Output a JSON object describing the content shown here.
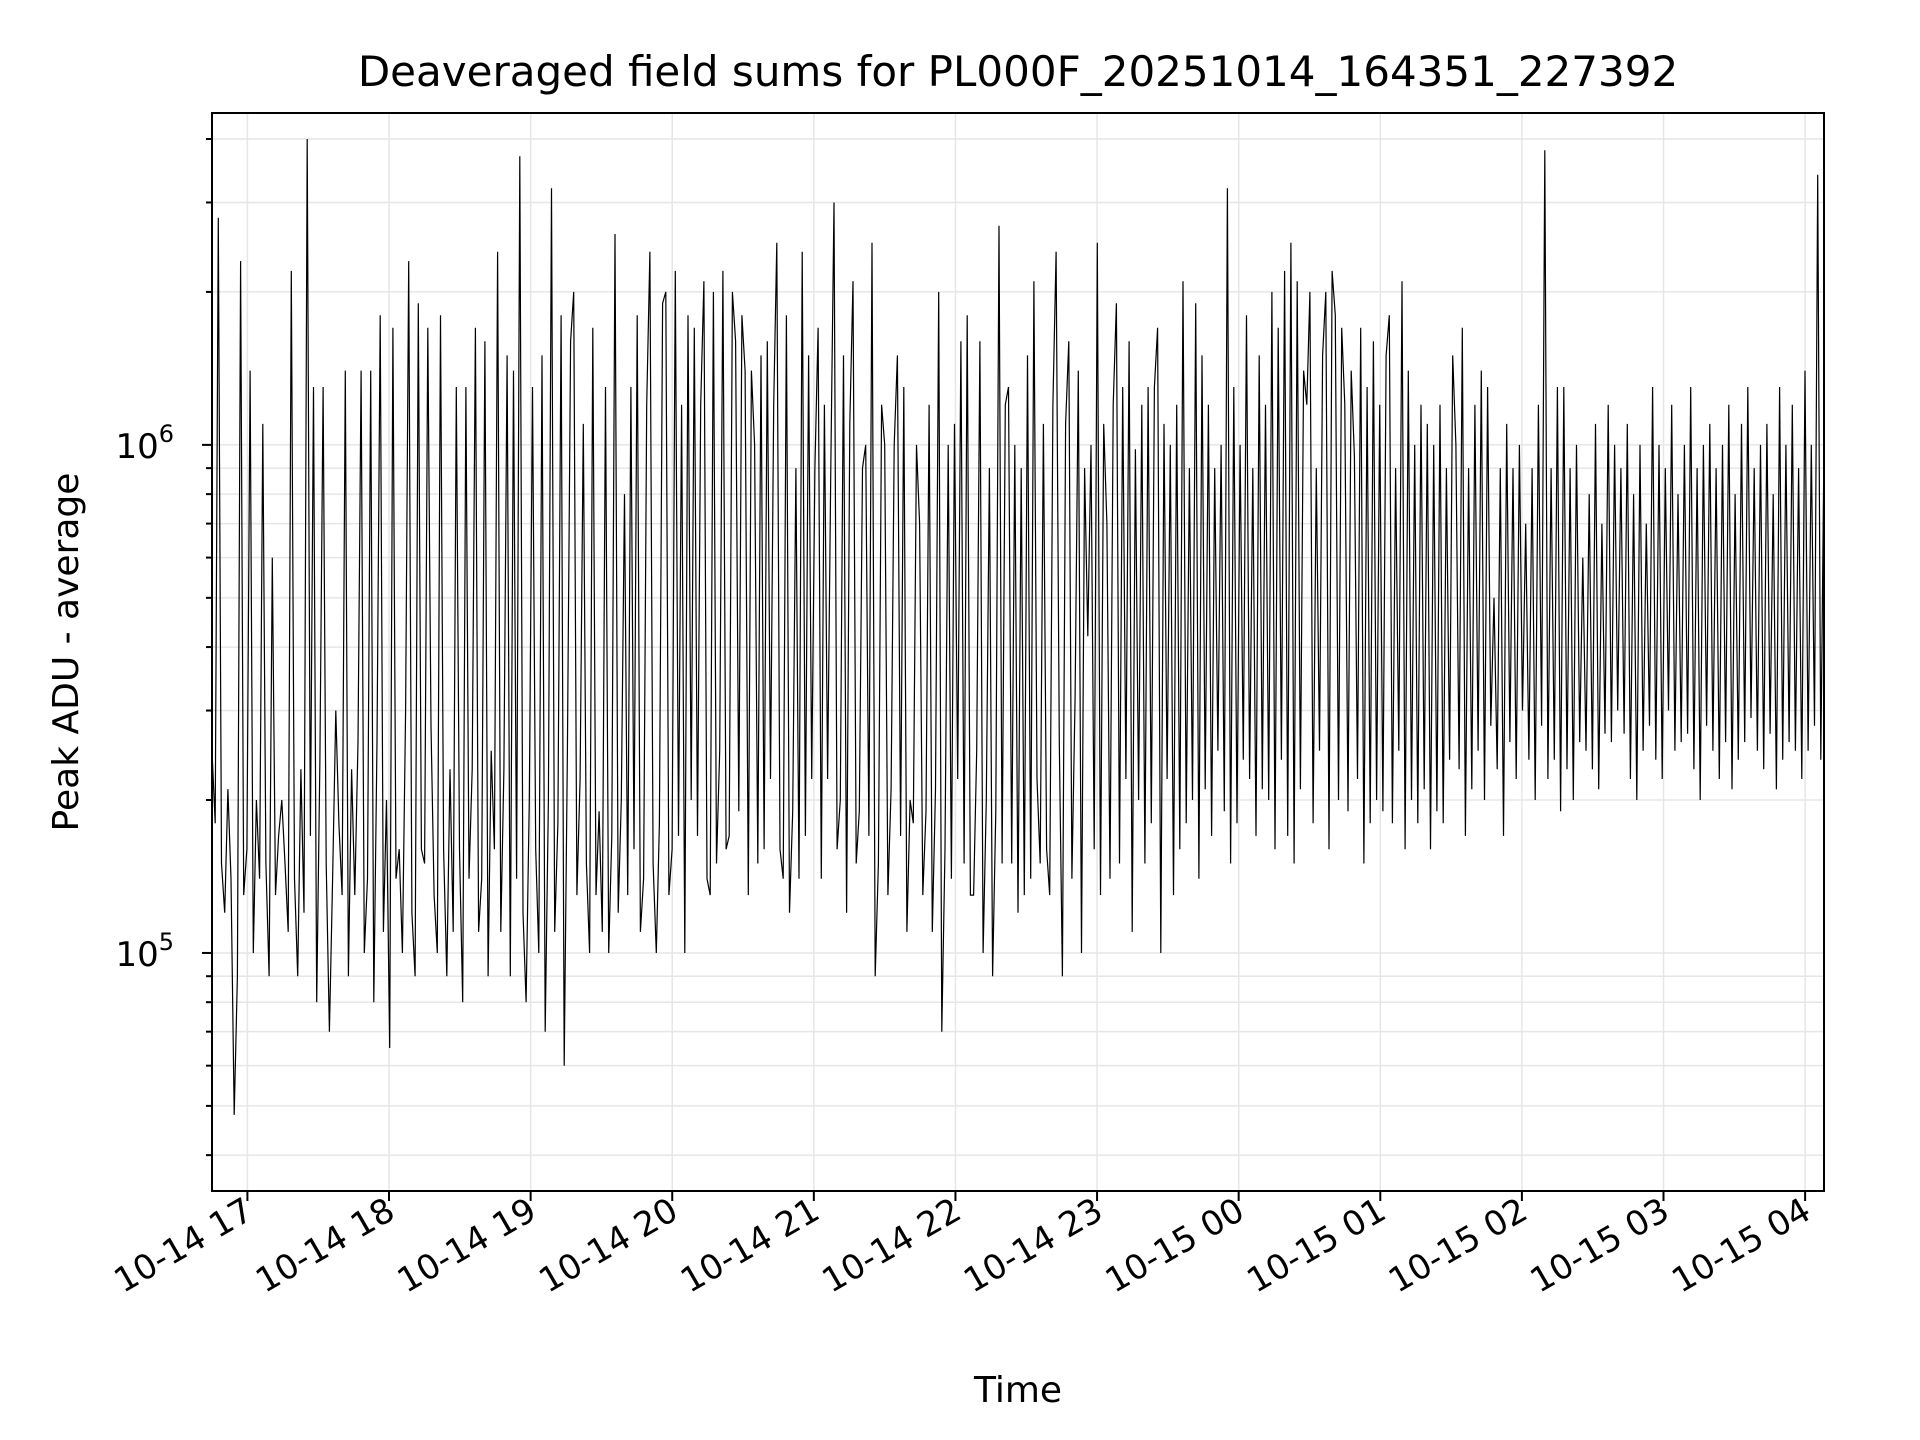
{
  "chart_data": {
    "type": "line",
    "title": "Deaveraged field sums for PL000F_20251014_164351_227392",
    "xlabel": "Time",
    "ylabel": "Peak ADU - average",
    "yscale": "log",
    "grid": true,
    "x_tick_labels": [
      "10-14 17",
      "10-14 18",
      "10-14 19",
      "10-14 20",
      "10-14 21",
      "10-14 22",
      "10-14 23",
      "10-15 00",
      "10-15 01",
      "10-15 02",
      "10-15 03",
      "10-15 04"
    ],
    "y_tick_labels": [
      {
        "base": "10",
        "exp": "5",
        "value": 100000
      },
      {
        "base": "10",
        "exp": "6",
        "value": 1000000
      }
    ],
    "xlim": [
      "2025-10-14 16:45",
      "2025-10-15 04:08"
    ],
    "ylim": [
      34000,
      4500000
    ],
    "series_color": "#000000",
    "series": [
      {
        "x_start": "2025-10-14 16:45",
        "x_end": "2025-10-15 04:08",
        "values": [
          250000,
          180000,
          2800000,
          150000,
          120000,
          210000,
          140000,
          48000,
          90000,
          2300000,
          130000,
          160000,
          1400000,
          100000,
          200000,
          140000,
          1100000,
          150000,
          90000,
          600000,
          130000,
          170000,
          200000,
          150000,
          110000,
          2200000,
          140000,
          90000,
          230000,
          120000,
          4000000,
          170000,
          1300000,
          80000,
          240000,
          1300000,
          150000,
          70000,
          140000,
          300000,
          180000,
          130000,
          1400000,
          90000,
          230000,
          130000,
          260000,
          1400000,
          100000,
          140000,
          1400000,
          80000,
          260000,
          1800000,
          110000,
          200000,
          65000,
          1700000,
          140000,
          160000,
          100000,
          300000,
          2300000,
          120000,
          90000,
          1900000,
          160000,
          150000,
          1700000,
          280000,
          130000,
          100000,
          1800000,
          160000,
          90000,
          230000,
          110000,
          1300000,
          160000,
          80000,
          1300000,
          140000,
          230000,
          1700000,
          110000,
          140000,
          1600000,
          90000,
          250000,
          160000,
          2400000,
          110000,
          230000,
          1500000,
          90000,
          1400000,
          140000,
          3700000,
          120000,
          80000,
          200000,
          1300000,
          160000,
          100000,
          1500000,
          70000,
          200000,
          3200000,
          110000,
          180000,
          1800000,
          60000,
          250000,
          1600000,
          2000000,
          130000,
          220000,
          1100000,
          150000,
          100000,
          1700000,
          130000,
          190000,
          110000,
          1300000,
          100000,
          170000,
          2600000,
          120000,
          200000,
          800000,
          130000,
          1300000,
          160000,
          1800000,
          110000,
          140000,
          1200000,
          2400000,
          150000,
          100000,
          180000,
          1900000,
          2000000,
          130000,
          160000,
          2200000,
          170000,
          1200000,
          100000,
          1800000,
          200000,
          1700000,
          170000,
          1200000,
          2100000,
          140000,
          130000,
          2000000,
          150000,
          250000,
          2200000,
          160000,
          170000,
          2000000,
          1600000,
          190000,
          1800000,
          1400000,
          130000,
          1400000,
          1000000,
          150000,
          1500000,
          160000,
          1600000,
          220000,
          1200000,
          2500000,
          160000,
          140000,
          1800000,
          120000,
          190000,
          900000,
          140000,
          2400000,
          170000,
          1500000,
          220000,
          900000,
          1700000,
          140000,
          1200000,
          220000,
          900000,
          3000000,
          160000,
          200000,
          1500000,
          120000,
          1100000,
          2100000,
          150000,
          190000,
          900000,
          1000000,
          170000,
          2500000,
          90000,
          150000,
          1200000,
          1000000,
          130000,
          210000,
          1000000,
          1500000,
          170000,
          1300000,
          110000,
          200000,
          180000,
          1000000,
          700000,
          130000,
          190000,
          1200000,
          110000,
          210000,
          2000000,
          70000,
          160000,
          1000000,
          140000,
          1100000,
          220000,
          1600000,
          150000,
          1800000,
          130000,
          130000,
          250000,
          1600000,
          100000,
          200000,
          900000,
          90000,
          190000,
          2700000,
          150000,
          1200000,
          1300000,
          150000,
          1000000,
          120000,
          900000,
          130000,
          1500000,
          140000,
          2100000,
          220000,
          150000,
          1100000,
          160000,
          130000,
          1200000,
          2400000,
          260000,
          90000,
          1100000,
          1600000,
          140000,
          320000,
          1400000,
          100000,
          900000,
          420000,
          1000000,
          160000,
          2500000,
          130000,
          1100000,
          700000,
          140000,
          1200000,
          1900000,
          150000,
          1300000,
          220000,
          1600000,
          110000,
          980000,
          200000,
          1200000,
          150000,
          1300000,
          180000,
          1300000,
          1700000,
          100000,
          1100000,
          220000,
          1000000,
          130000,
          1200000,
          160000,
          2100000,
          180000,
          900000,
          200000,
          1900000,
          140000,
          1500000,
          210000,
          1200000,
          170000,
          900000,
          250000,
          1000000,
          190000,
          3200000,
          150000,
          1300000,
          180000,
          1000000,
          240000,
          1800000,
          220000,
          900000,
          170000,
          1500000,
          210000,
          1200000,
          200000,
          2000000,
          160000,
          1700000,
          240000,
          2200000,
          170000,
          2500000,
          150000,
          2100000,
          210000,
          1400000,
          1200000,
          2000000,
          180000,
          900000,
          250000,
          1500000,
          2000000,
          160000,
          2200000,
          1800000,
          200000,
          1700000,
          1200000,
          190000,
          1400000,
          950000,
          220000,
          1700000,
          150000,
          1300000,
          180000,
          1600000,
          200000,
          1200000,
          190000,
          1500000,
          1800000,
          180000,
          900000,
          250000,
          2100000,
          160000,
          1400000,
          200000,
          1000000,
          180000,
          1200000,
          210000,
          1100000,
          160000,
          1000000,
          190000,
          1200000,
          180000,
          900000,
          240000,
          1500000,
          1000000,
          230000,
          1700000,
          170000,
          900000,
          210000,
          1200000,
          250000,
          1400000,
          200000,
          1300000,
          280000,
          500000,
          230000,
          900000,
          170000,
          1100000,
          260000,
          900000,
          220000,
          1000000,
          300000,
          700000,
          240000,
          900000,
          200000,
          1200000,
          280000,
          3800000,
          220000,
          900000,
          240000,
          1300000,
          190000,
          1300000,
          230000,
          900000,
          200000,
          1000000,
          260000,
          600000,
          250000,
          800000,
          230000,
          1100000,
          210000,
          700000,
          270000,
          1200000,
          260000,
          1000000,
          300000,
          900000,
          270000,
          1100000,
          220000,
          800000,
          200000,
          1000000,
          250000,
          700000,
          280000,
          1300000,
          240000,
          1000000,
          220000,
          900000,
          300000,
          1200000,
          250000,
          800000,
          260000,
          1000000,
          270000,
          1300000,
          230000,
          900000,
          200000,
          1000000,
          280000,
          1100000,
          250000,
          900000,
          220000,
          1000000,
          260000,
          1200000,
          210000,
          800000,
          240000,
          1100000,
          260000,
          1300000,
          290000,
          900000,
          250000,
          1000000,
          230000,
          1100000,
          270000,
          800000,
          210000,
          1300000,
          240000,
          1000000,
          260000,
          1200000,
          250000,
          900000,
          220000,
          1400000,
          250000,
          1000000,
          280000,
          3400000,
          240000,
          1000000
        ]
      }
    ]
  }
}
